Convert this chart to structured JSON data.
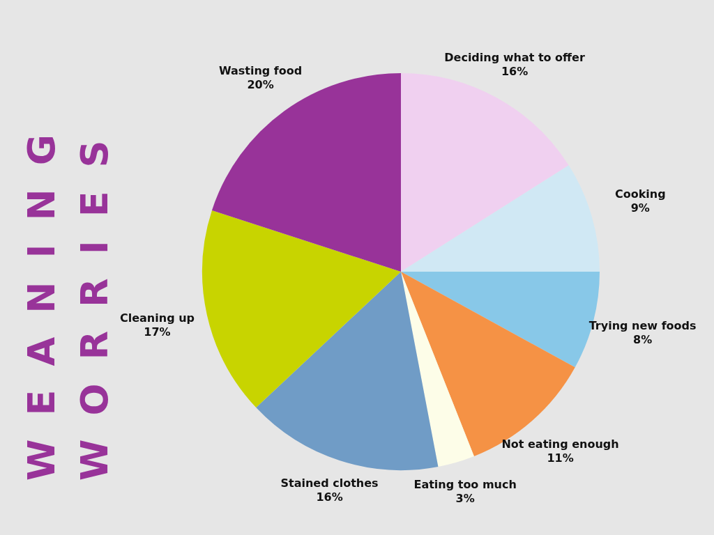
{
  "chart_data": {
    "type": "pie",
    "title": "WEANING WORRIES",
    "categories": [
      "Deciding what to offer",
      "Cooking",
      "Trying new foods",
      "Not eating enough",
      "Eating too much",
      "Stained clothes",
      "Cleaning up",
      "Wasting food"
    ],
    "values": [
      16,
      9,
      8,
      11,
      3,
      16,
      17,
      20
    ],
    "value_labels": [
      "16%",
      "9%",
      "8%",
      "11%",
      "3%",
      "16%",
      "17%",
      "20%"
    ],
    "colors": [
      "#f0d0f0",
      "#d0e8f4",
      "#88c8e8",
      "#f59245",
      "#fdfde8",
      "#709cc6",
      "#c8d400",
      "#983399"
    ],
    "legend": false
  }
}
